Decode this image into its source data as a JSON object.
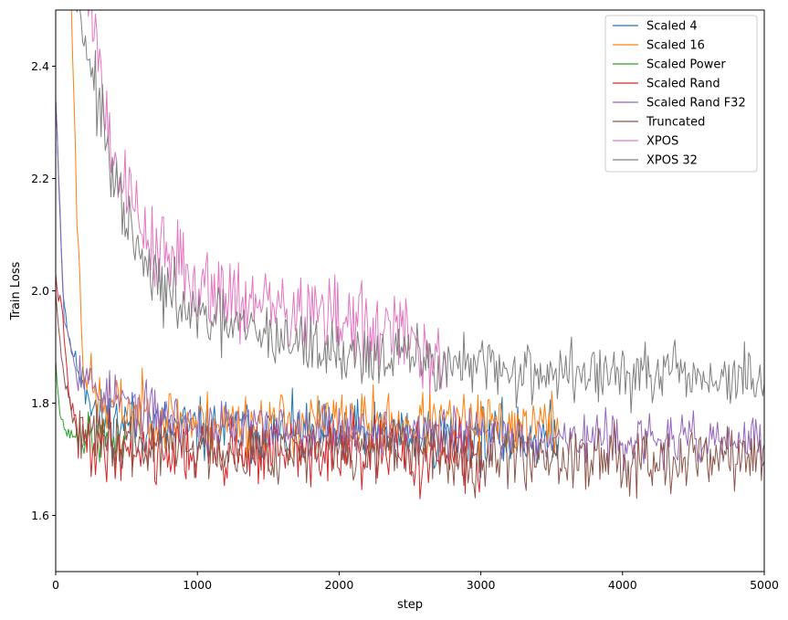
{
  "chart_data": {
    "type": "line",
    "title": "",
    "xlabel": "step",
    "ylabel": "Train Loss",
    "xlim": [
      0,
      5000
    ],
    "ylim": [
      1.5,
      2.5
    ],
    "xticks": [
      0,
      1000,
      2000,
      3000,
      4000,
      5000
    ],
    "xtick_labels": [
      "0",
      "1000",
      "2000",
      "3000",
      "4000",
      "5000"
    ],
    "yticks": [
      1.6,
      1.8,
      2.0,
      2.2,
      2.4
    ],
    "ytick_labels": [
      "1.6",
      "1.8",
      "2.0",
      "2.2",
      "2.4"
    ],
    "grid": false,
    "legend_position": "top-right",
    "series": [
      {
        "name": "Scaled 4",
        "color": "#1f77b4",
        "x_end": 3550,
        "noise": 0.028,
        "seed": 11,
        "points": [
          [
            0,
            2.35
          ],
          [
            50,
            2.0
          ],
          [
            100,
            1.9
          ],
          [
            200,
            1.85
          ],
          [
            300,
            1.77
          ],
          [
            1000,
            1.75
          ],
          [
            2000,
            1.745
          ],
          [
            3000,
            1.74
          ],
          [
            3550,
            1.74
          ]
        ]
      },
      {
        "name": "Scaled 16",
        "color": "#ff7f0e",
        "x_end": 3550,
        "noise": 0.028,
        "seed": 23,
        "points": [
          [
            0,
            2.6
          ],
          [
            100,
            2.6
          ],
          [
            150,
            2.15
          ],
          [
            200,
            1.86
          ],
          [
            300,
            1.8
          ],
          [
            1000,
            1.765
          ],
          [
            2000,
            1.765
          ],
          [
            3000,
            1.76
          ],
          [
            3550,
            1.76
          ]
        ]
      },
      {
        "name": "Scaled Power",
        "color": "#2ca02c",
        "x_end": 500,
        "noise": 0.02,
        "seed": 37,
        "points": [
          [
            0,
            1.88
          ],
          [
            30,
            1.78
          ],
          [
            80,
            1.745
          ],
          [
            200,
            1.74
          ],
          [
            500,
            1.73
          ]
        ]
      },
      {
        "name": "Scaled Rand",
        "color": "#d62728",
        "x_end": 3000,
        "noise": 0.03,
        "seed": 41,
        "points": [
          [
            0,
            2.02
          ],
          [
            40,
            1.97
          ],
          [
            100,
            1.8
          ],
          [
            200,
            1.73
          ],
          [
            500,
            1.72
          ],
          [
            1000,
            1.715
          ],
          [
            2000,
            1.71
          ],
          [
            3000,
            1.705
          ]
        ]
      },
      {
        "name": "Scaled Rand F32",
        "color": "#9467bd",
        "x_end": 5000,
        "noise": 0.022,
        "seed": 53,
        "points": [
          [
            0,
            2.35
          ],
          [
            60,
            1.95
          ],
          [
            150,
            1.86
          ],
          [
            300,
            1.82
          ],
          [
            600,
            1.79
          ],
          [
            1000,
            1.76
          ],
          [
            2000,
            1.755
          ],
          [
            3000,
            1.745
          ],
          [
            4000,
            1.735
          ],
          [
            5000,
            1.73
          ]
        ]
      },
      {
        "name": "Truncated",
        "color": "#8c564b",
        "x_end": 5000,
        "noise": 0.028,
        "seed": 67,
        "points": [
          [
            0,
            2.0
          ],
          [
            50,
            1.86
          ],
          [
            120,
            1.78
          ],
          [
            300,
            1.73
          ],
          [
            1000,
            1.72
          ],
          [
            2000,
            1.715
          ],
          [
            3000,
            1.71
          ],
          [
            4000,
            1.705
          ],
          [
            5000,
            1.705
          ]
        ]
      },
      {
        "name": "XPOS",
        "color": "#e377c2",
        "x_end": 2760,
        "noise": 0.038,
        "seed": 79,
        "points": [
          [
            0,
            2.6
          ],
          [
            200,
            2.6
          ],
          [
            280,
            2.45
          ],
          [
            400,
            2.25
          ],
          [
            600,
            2.12
          ],
          [
            800,
            2.05
          ],
          [
            1000,
            2.02
          ],
          [
            1500,
            1.97
          ],
          [
            2000,
            1.95
          ],
          [
            2500,
            1.91
          ],
          [
            2700,
            1.89
          ],
          [
            2760,
            1.85
          ]
        ]
      },
      {
        "name": "XPOS 32",
        "color": "#7f7f7f",
        "x_end": 5000,
        "noise": 0.028,
        "seed": 97,
        "points": [
          [
            0,
            2.6
          ],
          [
            150,
            2.52
          ],
          [
            250,
            2.4
          ],
          [
            400,
            2.2
          ],
          [
            600,
            2.05
          ],
          [
            800,
            1.99
          ],
          [
            1000,
            1.95
          ],
          [
            1500,
            1.92
          ],
          [
            2000,
            1.89
          ],
          [
            2500,
            1.88
          ],
          [
            3000,
            1.86
          ],
          [
            4000,
            1.85
          ],
          [
            5000,
            1.84
          ]
        ]
      }
    ]
  }
}
